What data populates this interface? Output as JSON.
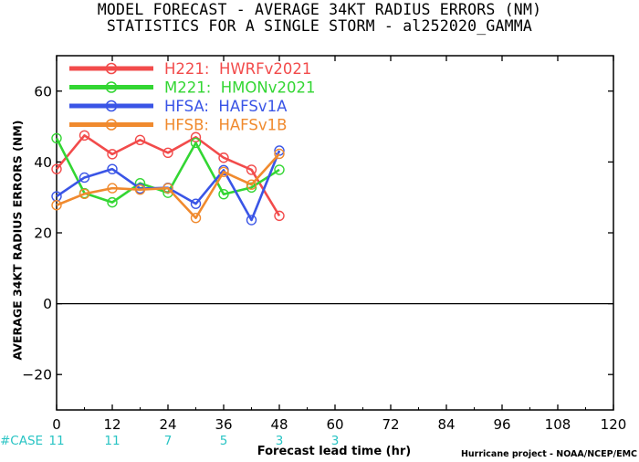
{
  "header": {
    "title_line1": "MODEL FORECAST - AVERAGE 34KT RADIUS ERRORS (NM)",
    "title_line2": "STATISTICS FOR A SINGLE STORM - al252020_GAMMA"
  },
  "footer": {
    "credit": "Hurricane project - NOAA/NCEP/EMC"
  },
  "case_row": {
    "label": "#CASE",
    "lead_times": [
      0,
      12,
      24,
      36,
      48,
      60
    ],
    "counts": [
      "11",
      "11",
      "7",
      "5",
      "3",
      "3"
    ],
    "color": "#29c4c4"
  },
  "chart_data": {
    "type": "line",
    "title": "MODEL FORECAST - AVERAGE 34KT RADIUS ERRORS (NM)",
    "subtitle": "STATISTICS FOR A SINGLE STORM - al252020_GAMMA",
    "xlabel": "Forecast lead time (hr)",
    "ylabel": "AVERAGE 34KT RADIUS ERRORS (NM)",
    "xlim": [
      0,
      120
    ],
    "ylim": [
      -30,
      70
    ],
    "xticks": [
      0,
      12,
      24,
      36,
      48,
      60,
      72,
      84,
      96,
      108,
      120
    ],
    "yticks": [
      -20,
      0,
      20,
      40,
      60
    ],
    "grid": false,
    "legend_position": "top-left",
    "x": [
      0,
      6,
      12,
      18,
      24,
      30,
      36,
      42,
      48
    ],
    "series": [
      {
        "name": "H221:  HWRFv2021",
        "color": "#f24b4b",
        "values": [
          38,
          47.5,
          42.2,
          46.2,
          42.6,
          47,
          41.2,
          37.8,
          24.8
        ]
      },
      {
        "name": "M221:  HMONv2021",
        "color": "#33d633",
        "values": [
          46.7,
          31.2,
          28.6,
          34,
          31.3,
          45.4,
          30.9,
          32.8,
          37.8
        ]
      },
      {
        "name": "HFSA:  HAFSv1A",
        "color": "#3a55e6",
        "values": [
          30.3,
          35.6,
          38,
          32.5,
          32.7,
          28.2,
          37.7,
          23.6,
          43.2
        ]
      },
      {
        "name": "HFSB:  HAFSv1B",
        "color": "#f08a2e",
        "values": [
          27.8,
          31,
          32.6,
          32.2,
          32.6,
          24.2,
          37.2,
          33.6,
          42.3
        ]
      }
    ]
  }
}
